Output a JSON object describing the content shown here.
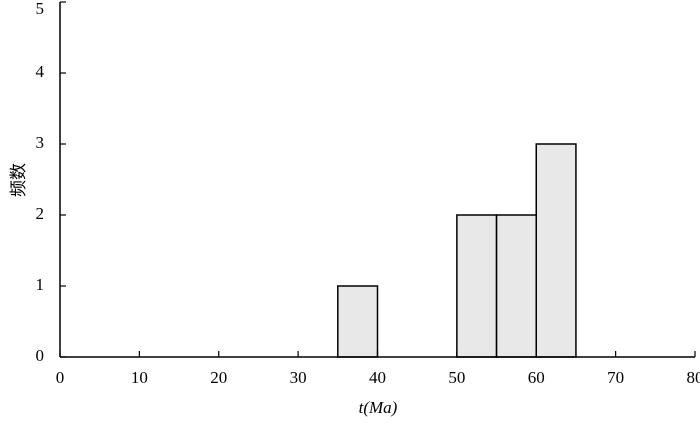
{
  "chart_data": {
    "type": "histogram",
    "xlabel": "t(Ma)",
    "ylabel": "频数",
    "bins": [
      35,
      40,
      45,
      50,
      55,
      60,
      65
    ],
    "values": [
      1,
      0,
      0,
      2,
      2,
      3
    ],
    "color": "#e8e8e8",
    "xlim": [
      0,
      80
    ],
    "xticks": [
      0,
      10,
      20,
      30,
      40,
      50,
      60,
      70,
      80
    ],
    "ylim": [
      0,
      5
    ],
    "yticks": [
      0,
      1,
      2,
      3,
      4,
      5
    ]
  }
}
